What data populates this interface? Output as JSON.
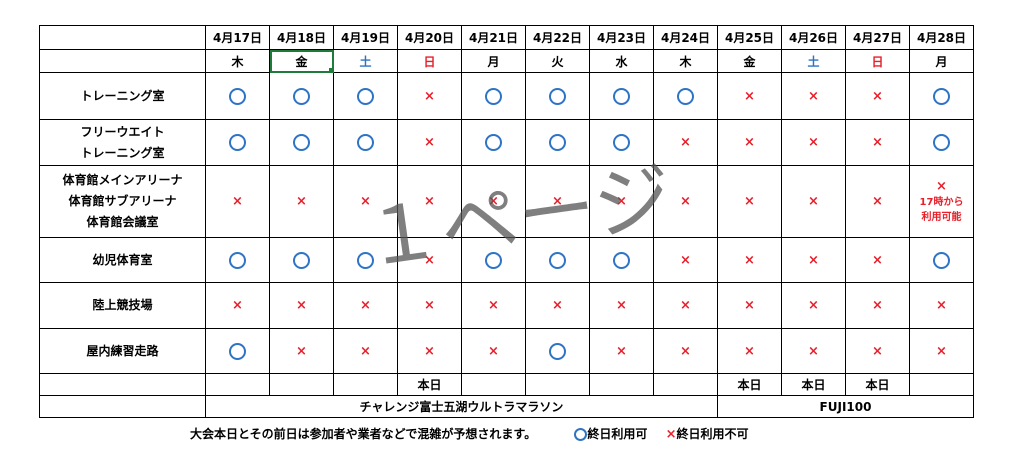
{
  "dates": [
    "4月17日",
    "4月18日",
    "4月19日",
    "4月20日",
    "4月21日",
    "4月22日",
    "4月23日",
    "4月24日",
    "4月25日",
    "4月26日",
    "4月27日",
    "4月28日"
  ],
  "weekdays": [
    "木",
    "金",
    "土",
    "日",
    "月",
    "火",
    "水",
    "木",
    "金",
    "土",
    "日",
    "月"
  ],
  "facilities": {
    "training": "トレーニング室",
    "free_weight_1": "フリーウエイト",
    "free_weight_2": "トレーニング室",
    "gym_1": "体育館メインアリーナ",
    "gym_2": "体育館サブアリーナ",
    "gym_3": "体育館会議室",
    "kids": "幼児体育室",
    "athletics": "陸上競技場",
    "indoor_track": "屋内練習走路"
  },
  "availability": {
    "training": [
      "○",
      "○",
      "○",
      "×",
      "○",
      "○",
      "○",
      "○",
      "×",
      "×",
      "×",
      "○"
    ],
    "free_weight": [
      "○",
      "○",
      "○",
      "×",
      "○",
      "○",
      "○",
      "×",
      "×",
      "×",
      "×",
      "○"
    ],
    "gym": [
      "×",
      "×",
      "×",
      "×",
      "×",
      "×",
      "×",
      "×",
      "×",
      "×",
      "×",
      "×"
    ],
    "kids": [
      "○",
      "○",
      "○",
      "×",
      "○",
      "○",
      "○",
      "×",
      "×",
      "×",
      "×",
      "○"
    ],
    "athletics": [
      "×",
      "×",
      "×",
      "×",
      "×",
      "×",
      "×",
      "×",
      "×",
      "×",
      "×",
      "×"
    ],
    "indoor_track": [
      "○",
      "×",
      "×",
      "×",
      "×",
      "○",
      "×",
      "×",
      "×",
      "×",
      "×",
      "×"
    ]
  },
  "gym_note": "17時から",
  "gym_note2": "利用可能",
  "event_day_label": "本日",
  "events": {
    "challenge": "チャレンジ富士五湖ウルトラマラソン",
    "fuji": "FUJI100"
  },
  "watermark": "１ページ",
  "footer": {
    "note": "大会本日とその前日は参加者や業者などで混雑が予想されます。",
    "legend_ok": "終日利用可",
    "legend_ng": "終日利用不可"
  },
  "colors": {
    "circle": "#2f74c4",
    "cross": "#e8202a",
    "saturday": "#2f74c4",
    "sunday": "#e8202a"
  }
}
